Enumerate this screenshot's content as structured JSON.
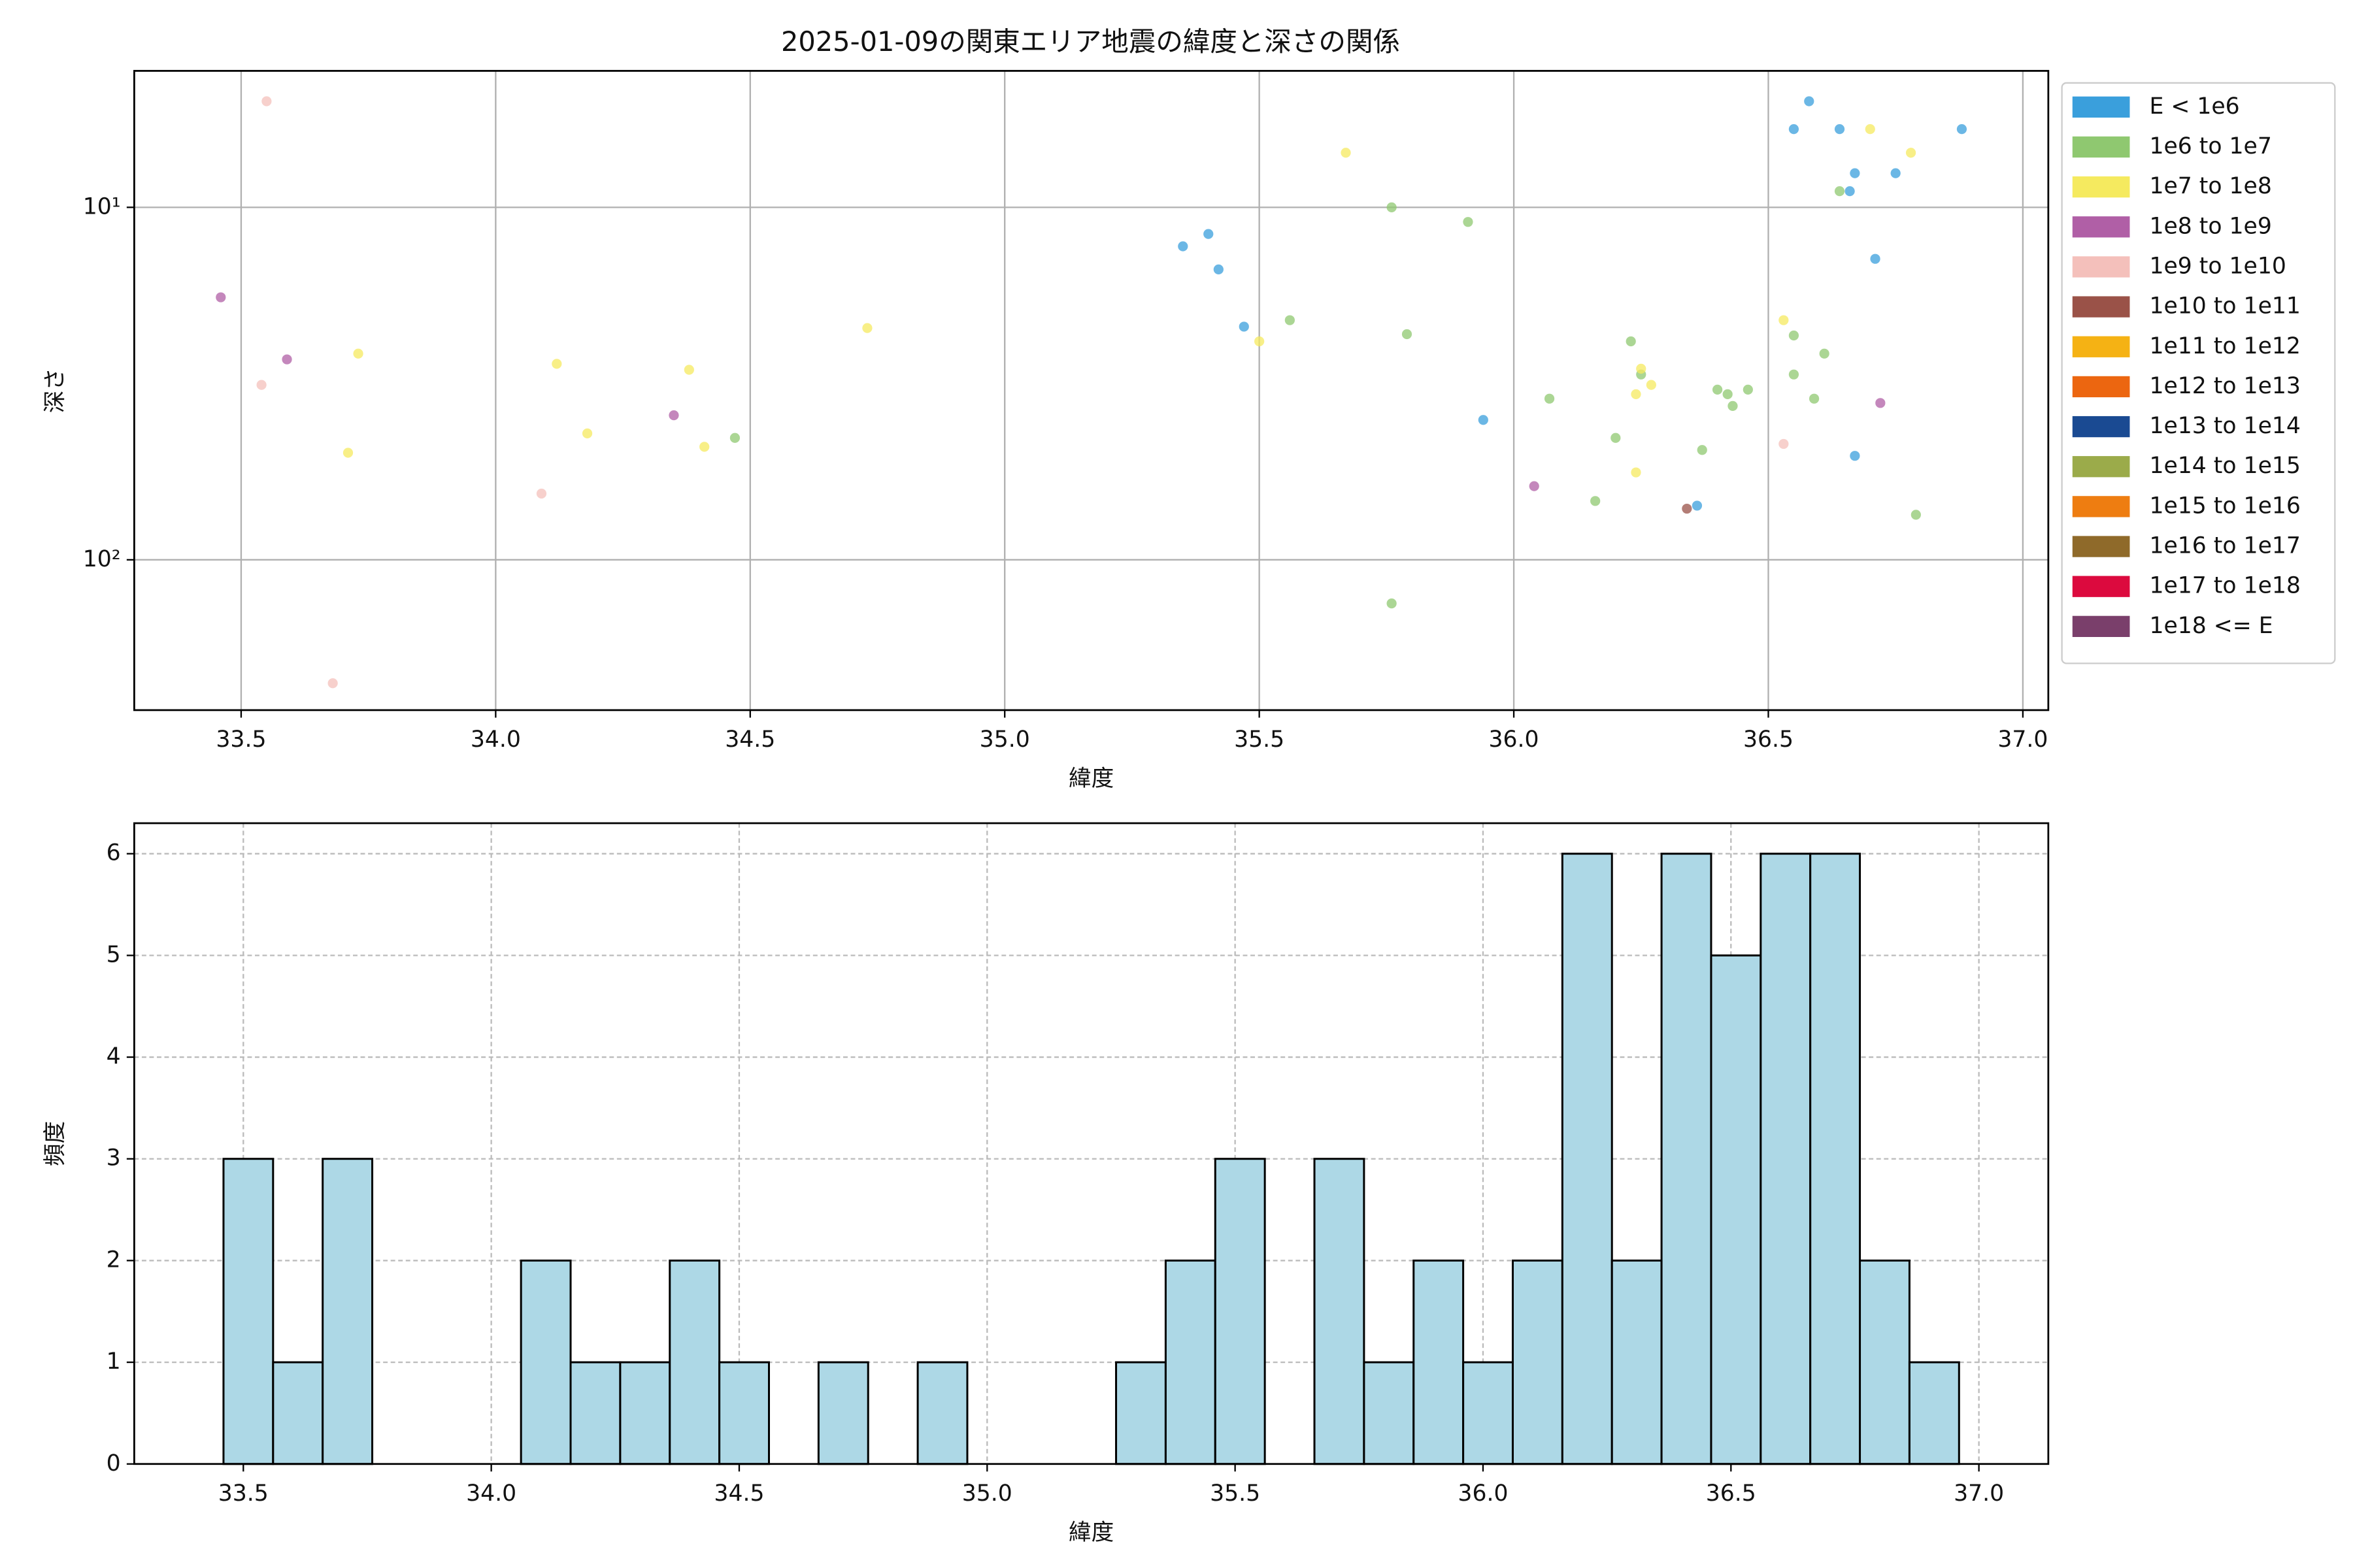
{
  "chart_data": [
    {
      "type": "scatter",
      "title": "2025-01-09の関東エリア地震の緯度と深さの関係",
      "xlabel": "緯度",
      "ylabel": "深さ",
      "xlim": [
        33.29,
        37.05
      ],
      "ylim": [
        4.1,
        267
      ],
      "yscale": "log",
      "yinverted": true,
      "grid": true,
      "legend": "outside right",
      "xticks": [
        33.5,
        {
          "value": 34,
          "label": "34.0"
        },
        34.5,
        {
          "value": 35,
          "label": "35.0"
        },
        35.5,
        {
          "value": 36,
          "label": "36.0"
        },
        36.5,
        {
          "value": 37,
          "label": "37.0"
        }
      ],
      "yticks": [
        {
          "value": 10,
          "label": "10¹"
        },
        {
          "value": 100,
          "label": "10²"
        }
      ],
      "series": [
        {
          "name": "E < 1e6",
          "color": "#3a9fdc",
          "x": [
            36.58,
            36.55,
            36.64,
            36.88,
            36.67,
            36.75,
            36.66,
            36.71,
            35.35,
            35.4,
            35.42,
            35.47,
            35.94,
            36.67,
            36.36
          ],
          "values": [
            5.0,
            6.0,
            6.0,
            6.0,
            8.0,
            8.0,
            9.0,
            14.0,
            12.9,
            11.9,
            15.0,
            21.8,
            40.1,
            50.7,
            70.2
          ]
        },
        {
          "name": "1e6 to 1e7",
          "color": "#8fc870",
          "x": [
            36.64,
            35.76,
            35.91,
            35.56,
            35.79,
            36.23,
            36.25,
            36.07,
            36.55,
            36.55,
            36.61,
            36.4,
            36.42,
            36.46,
            36.43,
            36.59,
            36.2,
            36.37,
            36.16,
            36.79,
            35.76,
            34.47
          ],
          "values": [
            9.0,
            10.0,
            11.0,
            20.9,
            22.9,
            24.0,
            29.8,
            34.9,
            23.1,
            29.8,
            26.0,
            32.9,
            33.9,
            32.9,
            36.6,
            34.9,
            45.1,
            48.8,
            68.1,
            74.5,
            133,
            45.1
          ]
        },
        {
          "name": "1e7 to 1e8",
          "color": "#f5ea5f",
          "x": [
            36.7,
            36.78,
            35.67,
            36.53,
            36.25,
            36.27,
            36.24,
            36.24,
            35.5,
            34.73,
            33.73,
            34.12,
            34.38,
            34.18,
            34.41,
            33.71
          ],
          "values": [
            6.0,
            7.0,
            7.0,
            20.9,
            28.7,
            31.9,
            33.9,
            56.5,
            24.0,
            22.0,
            26.0,
            27.8,
            28.9,
            43.8,
            47.8,
            49.7
          ]
        },
        {
          "name": "1e8 to 1e9",
          "color": "#b05fa6",
          "x": [
            33.46,
            33.59,
            34.35,
            36.72,
            36.04
          ],
          "values": [
            18.0,
            27.0,
            38.9,
            35.9,
            61.8
          ]
        },
        {
          "name": "1e9 to 1e10",
          "color": "#f4c0bb",
          "x": [
            33.55,
            33.54,
            34.09,
            36.53,
            33.68
          ],
          "values": [
            5.0,
            31.9,
            64.9,
            46.9,
            224
          ]
        },
        {
          "name": "1e10 to 1e11",
          "color": "#9a5248",
          "x": [
            36.34
          ],
          "values": [
            71.6
          ]
        },
        {
          "name": "1e11 to 1e12",
          "color": "#f5b214",
          "x": [],
          "values": []
        },
        {
          "name": "1e12 to 1e13",
          "color": "#ec6610",
          "x": [],
          "values": []
        },
        {
          "name": "1e13 to 1e14",
          "color": "#1a4a92",
          "x": [],
          "values": []
        },
        {
          "name": "1e14 to 1e15",
          "color": "#9bab4a",
          "x": [],
          "values": []
        },
        {
          "name": "1e15 to 1e16",
          "color": "#ee7d11",
          "x": [],
          "values": []
        },
        {
          "name": "1e16 to 1e17",
          "color": "#8f6a2a",
          "x": [],
          "values": []
        },
        {
          "name": "1e17 to 1e18",
          "color": "#dc0a3e",
          "x": [],
          "values": []
        },
        {
          "name": "1e18 <= E",
          "color": "#7a3f6b",
          "x": [],
          "values": []
        }
      ]
    },
    {
      "type": "histogram",
      "xlabel": "緯度",
      "ylabel": "頻度",
      "color": "#add8e6",
      "edgecolor": "#000000",
      "xlim": [
        33.28,
        37.14
      ],
      "ylim": [
        0,
        6.3
      ],
      "grid": true,
      "grid_style": "dashed",
      "xticks": [
        33.5,
        {
          "value": 34,
          "label": "34.0"
        },
        34.5,
        {
          "value": 35,
          "label": "35.0"
        },
        35.5,
        {
          "value": 36,
          "label": "36.0"
        },
        36.5,
        {
          "value": 37,
          "label": "37.0"
        }
      ],
      "yticks": [
        0,
        1,
        2,
        3,
        4,
        5,
        6
      ],
      "bins": [
        33.46,
        33.56,
        33.66,
        33.76,
        33.86,
        33.96,
        34.06,
        34.16,
        34.26,
        34.36,
        34.46,
        34.56,
        34.66,
        34.76,
        34.86,
        34.96,
        35.06,
        35.16,
        35.26,
        35.36,
        35.46,
        35.56,
        35.66,
        35.76,
        35.86,
        35.96,
        36.06,
        36.16,
        36.26,
        36.36,
        36.46,
        36.56,
        36.66,
        36.76,
        36.86,
        36.96
      ],
      "values": [
        3,
        1,
        3,
        0,
        0,
        0,
        2,
        1,
        1,
        2,
        1,
        0,
        1,
        0,
        1,
        0,
        0,
        0,
        1,
        2,
        3,
        0,
        3,
        1,
        2,
        1,
        2,
        6,
        2,
        6,
        5,
        6,
        6,
        2,
        1
      ]
    }
  ]
}
